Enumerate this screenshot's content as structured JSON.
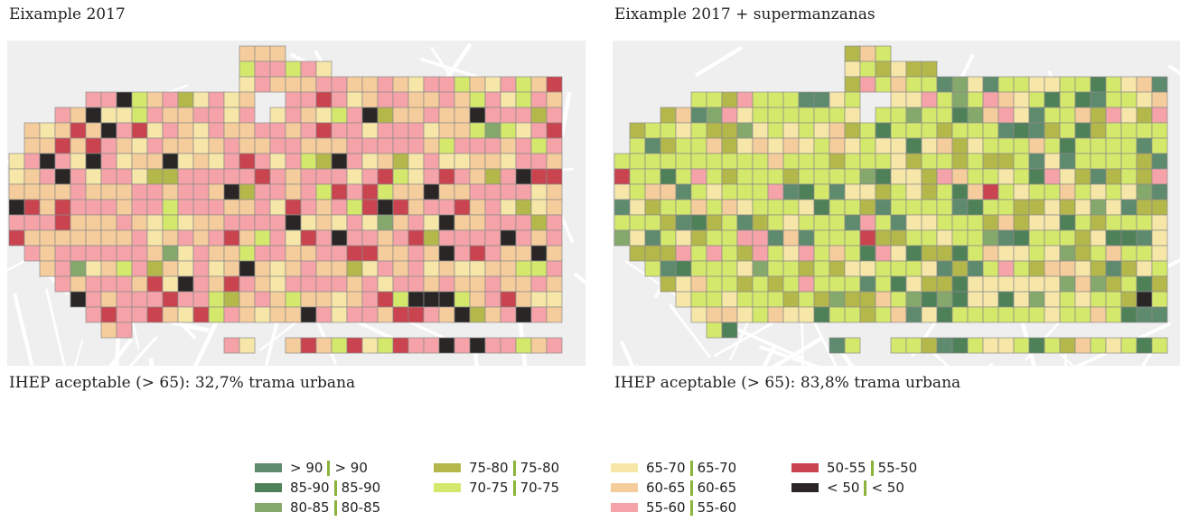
{
  "panels": [
    {
      "title": "Eixample 2017",
      "stat": "IHEP aceptable (> 65): 32,7% trama urbana",
      "seed": 11,
      "weights": [
        0,
        0,
        1,
        3,
        6,
        17,
        32,
        43,
        9,
        5
      ]
    },
    {
      "title": "Eixample 2017 + supermanzanas",
      "stat": "IHEP aceptable (> 65): 83,8% trama urbana",
      "seed": 29,
      "weights": [
        10,
        8,
        7,
        22,
        62,
        24,
        8,
        5,
        2,
        1
      ]
    }
  ],
  "legend": {
    "items": [
      {
        "label_es": "> 90",
        "label_ca": "> 90",
        "color": "#5e8a6d"
      },
      {
        "label_es": "85-90",
        "label_ca": "85-90",
        "color": "#4f8159"
      },
      {
        "label_es": "80-85",
        "label_ca": "80-85",
        "color": "#85a86c"
      },
      {
        "label_es": "75-80",
        "label_ca": "75-80",
        "color": "#b4b84a"
      },
      {
        "label_es": "70-75",
        "label_ca": "70-75",
        "color": "#d4e86b"
      },
      {
        "label_es": "65-70",
        "label_ca": "65-70",
        "color": "#f6e7a9"
      },
      {
        "label_es": "60-65",
        "label_ca": "60-65",
        "color": "#f5cc9b"
      },
      {
        "label_es": "55-60",
        "label_ca": "55-60",
        "color": "#f5a3a8"
      },
      {
        "label_es": "50-55",
        "label_ca": "55-50",
        "color": "#c9444f"
      },
      {
        "label_es": "< 50",
        "label_ca": "< 50",
        "color": "#2a2626"
      }
    ]
  }
}
